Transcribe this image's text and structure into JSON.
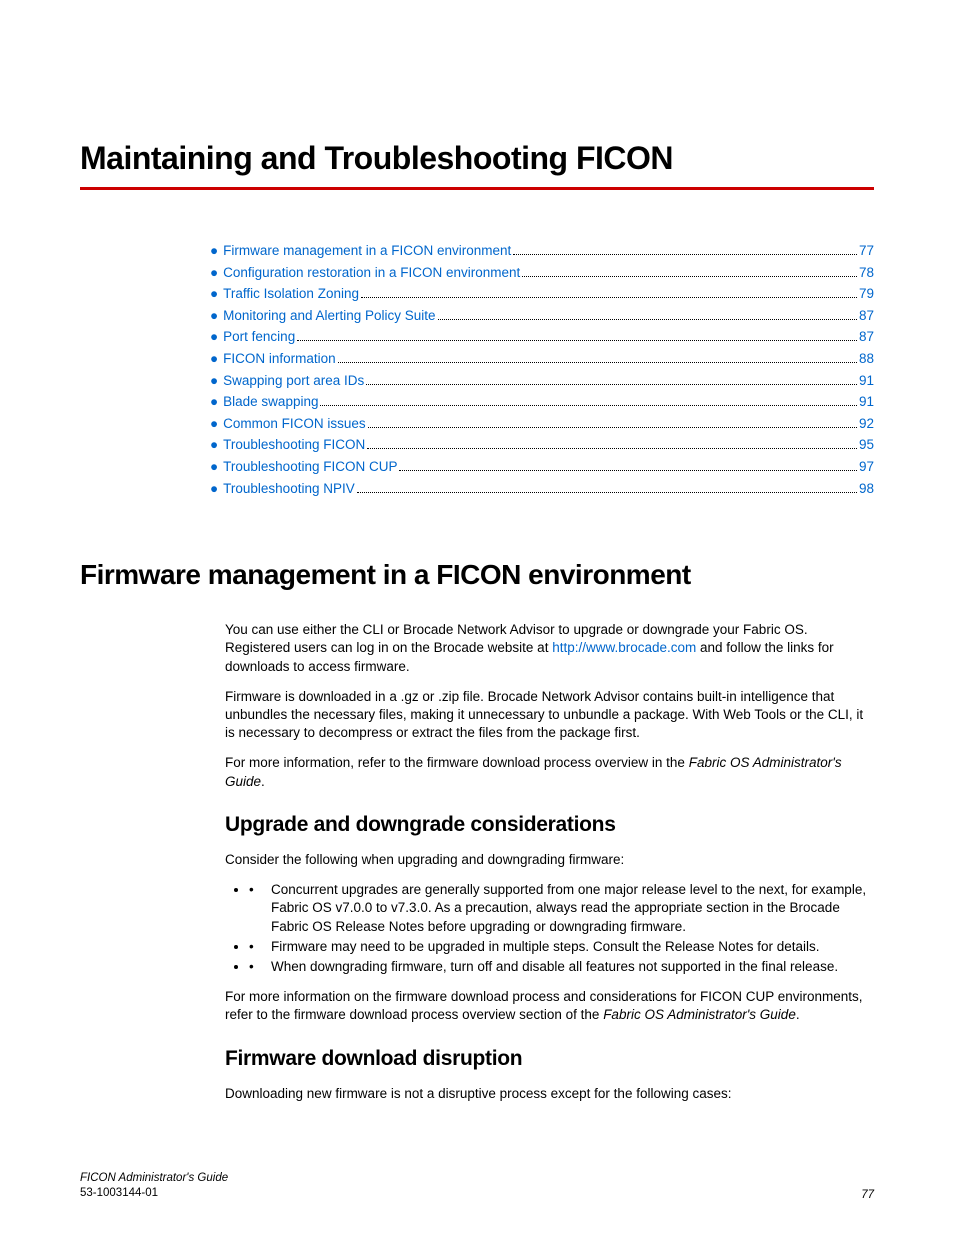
{
  "colors": {
    "rule": "#cc0000",
    "link": "#0066cc",
    "text": "#000000",
    "background": "#ffffff"
  },
  "chapter_title": "Maintaining and Troubleshooting FICON",
  "toc": [
    {
      "label": "Firmware management in a FICON environment",
      "page": "77"
    },
    {
      "label": "Configuration restoration in a FICON environment",
      "page": "78"
    },
    {
      "label": "Traffic Isolation Zoning",
      "page": "79"
    },
    {
      "label": "Monitoring and Alerting Policy Suite",
      "page": "87"
    },
    {
      "label": "Port fencing",
      "page": "87"
    },
    {
      "label": "FICON information",
      "page": "88"
    },
    {
      "label": "Swapping port area IDs",
      "page": "91"
    },
    {
      "label": "Blade swapping",
      "page": "91"
    },
    {
      "label": "Common FICON issues",
      "page": "92"
    },
    {
      "label": "Troubleshooting FICON",
      "page": "95"
    },
    {
      "label": "Troubleshooting FICON CUP",
      "page": "97"
    },
    {
      "label": "Troubleshooting NPIV",
      "page": "98"
    }
  ],
  "section_title": "Firmware management in a FICON environment",
  "para1_a": "You can use either the CLI or Brocade Network Advisor to upgrade or downgrade your Fabric OS. Registered users can log in on the Brocade website at ",
  "para1_link": "http://www.brocade.com",
  "para1_b": " and follow the links for downloads to access firmware.",
  "para2": "Firmware is downloaded in a .gz or .zip file. Brocade Network Advisor contains built-in intelligence that unbundles the necessary files, making it unnecessary to unbundle a package. With Web Tools or the CLI, it is necessary to decompress or extract the files from the package first.",
  "para3_a": "For more information, refer to the firmware download process overview in the ",
  "para3_i": "Fabric OS Administrator's Guide",
  "para3_b": ".",
  "sub1_title": "Upgrade and downgrade considerations",
  "sub1_intro": "Consider the following when upgrading and downgrading firmware:",
  "sub1_bullets": [
    "Concurrent upgrades are generally supported from one major release level to the next, for example, Fabric OS v7.0.0 to v7.3.0. As a precaution, always read the appropriate section in the Brocade Fabric OS Release Notes before upgrading or downgrading firmware.",
    "Firmware may need to be upgraded in multiple steps. Consult the Release Notes for details.",
    "When downgrading firmware, turn off and disable all features not supported in the final release."
  ],
  "sub1_out_a": "For more information on the firmware download process and considerations for FICON CUP environments, refer to the firmware download process overview section of the ",
  "sub1_out_i": "Fabric OS Administrator's Guide",
  "sub1_out_b": ".",
  "sub2_title": "Firmware download disruption",
  "sub2_para": "Downloading new firmware is not a disruptive process except for the following cases:",
  "footer": {
    "doc_title": "FICON Administrator's Guide",
    "doc_num": "53-1003144-01",
    "page_num": "77"
  }
}
